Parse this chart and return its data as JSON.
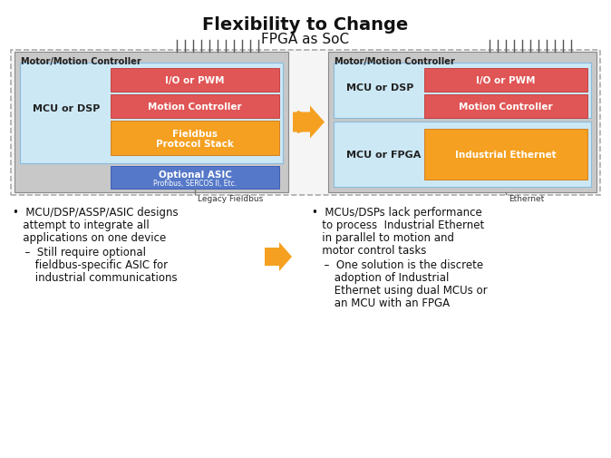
{
  "title": "Flexibility to Change",
  "subtitle": "FPGA as SoC",
  "bg_color": "#ffffff",
  "light_blue": "#cce8f5",
  "gray_bg": "#c8c8c8",
  "red_box": "#e05555",
  "orange_box": "#f5a020",
  "blue_box": "#5578c8",
  "left_label": "Motor/Motion Controller",
  "right_label": "Motor/Motion Controller",
  "left_inner_label": "MCU or DSP",
  "right_top_inner_label": "MCU or DSP",
  "right_bot_inner_label": "MCU or FPGA",
  "box1_label": "I/O or PWM",
  "box2_label": "Motion Controller",
  "box3a_label": "Fieldbus",
  "box3b_label": "Protocol Stack",
  "box4_label": "Optional ASIC",
  "box4_sublabel": "Profibus, SERCOS II, Etc.",
  "box5_label": "I/O or PWM",
  "box6_label": "Motion Controller",
  "box7_label": "Industrial Ethernet",
  "left_bus_label": "Legacy Fieldbus",
  "right_bus_label": "Ethernet",
  "bullet1_line1": "•  MCU/DSP/ASSP/ASIC designs",
  "bullet1_line2": "   attempt to integrate all",
  "bullet1_line3": "   applications on one device",
  "sub1_line1": "  –  Still require optional",
  "sub1_line2": "     fieldbus-specific ASIC for",
  "sub1_line3": "     industrial communications",
  "bullet2_line1": "•  MCUs/DSPs lack performance",
  "bullet2_line2": "   to process  Industrial Ethernet",
  "bullet2_line3": "   in parallel to motion and",
  "bullet2_line4": "   motor control tasks",
  "sub2_line1": "  –  One solution is the discrete",
  "sub2_line2": "     adoption of Industrial",
  "sub2_line3": "     Ethernet using dual MCUs or",
  "sub2_line4": "     an MCU with an FPGA",
  "arrow_color": "#f5a020",
  "pin_color": "#555555",
  "border_dash_color": "#aaaaaa"
}
